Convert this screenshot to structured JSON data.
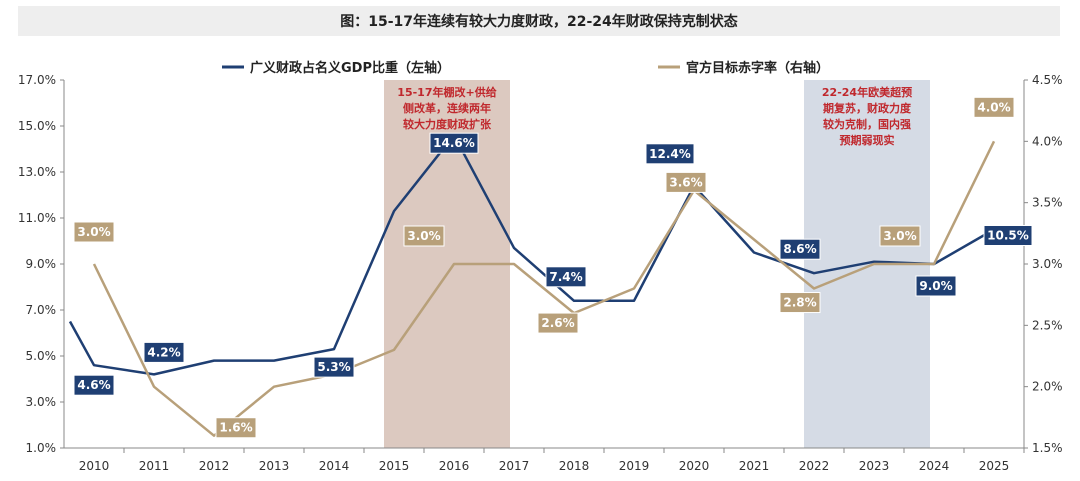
{
  "title": "图：15-17年连续有较大力度财政，22-24年财政保持克制状态",
  "chart_data": {
    "type": "line",
    "x": [
      "2010",
      "2011",
      "2012",
      "2013",
      "2014",
      "2015",
      "2016",
      "2017",
      "2018",
      "2019",
      "2020",
      "2021",
      "2022",
      "2023",
      "2024",
      "2025"
    ],
    "left_axis": {
      "ticks": [
        "1.0%",
        "3.0%",
        "5.0%",
        "7.0%",
        "9.0%",
        "11.0%",
        "13.0%",
        "15.0%",
        "17.0%"
      ],
      "ylim": [
        1,
        17
      ]
    },
    "right_axis": {
      "ticks": [
        "1.5%",
        "2.0%",
        "2.5%",
        "3.0%",
        "3.5%",
        "4.0%",
        "4.5%"
      ],
      "ylim": [
        1.5,
        4.5
      ]
    },
    "series": [
      {
        "name": "广义财政占名义GDP比重（左轴）",
        "axis": "left",
        "color": "#1f3f73",
        "x": [
          2009.6,
          2010,
          2011,
          2012,
          2013,
          2014,
          2015,
          2016,
          2017,
          2018,
          2019,
          2020,
          2021,
          2022,
          2023,
          2024,
          2025
        ],
        "values": [
          6.5,
          4.6,
          4.2,
          4.8,
          4.8,
          5.3,
          11.3,
          14.6,
          9.7,
          7.4,
          7.4,
          12.4,
          9.5,
          8.6,
          9.1,
          9.0,
          10.5
        ]
      },
      {
        "name": "官方目标赤字率（右轴）",
        "axis": "right",
        "color": "#b8a07a",
        "x": [
          2010,
          2011,
          2012,
          2013,
          2014,
          2015,
          2016,
          2017,
          2018,
          2019,
          2020,
          2021,
          2022,
          2023,
          2024,
          2025
        ],
        "values": [
          3.0,
          2.0,
          1.6,
          2.0,
          2.1,
          2.3,
          3.0,
          3.0,
          2.6,
          2.8,
          3.6,
          3.2,
          2.8,
          3.0,
          3.0,
          4.0
        ]
      }
    ],
    "data_labels": [
      {
        "series": 0,
        "year": 2010,
        "text": "4.6%"
      },
      {
        "series": 0,
        "year": 2011,
        "text": "4.2%"
      },
      {
        "series": 0,
        "year": 2014,
        "text": "5.3%"
      },
      {
        "series": 0,
        "year": 2016,
        "text": "14.6%"
      },
      {
        "series": 0,
        "year": 2018,
        "text": "7.4%"
      },
      {
        "series": 0,
        "year": 2020,
        "text": "12.4%"
      },
      {
        "series": 0,
        "year": 2022,
        "text": "8.6%"
      },
      {
        "series": 0,
        "year": 2024,
        "text": "9.0%"
      },
      {
        "series": 0,
        "year": 2025,
        "text": "10.5%"
      },
      {
        "series": 1,
        "year": 2010,
        "text": "3.0%"
      },
      {
        "series": 1,
        "year": 2012,
        "text": "1.6%"
      },
      {
        "series": 1,
        "year": 2016,
        "text": "3.0%"
      },
      {
        "series": 1,
        "year": 2018,
        "text": "2.6%"
      },
      {
        "series": 1,
        "year": 2020,
        "text": "3.6%"
      },
      {
        "series": 1,
        "year": 2022,
        "text": "2.8%"
      },
      {
        "series": 1,
        "year": 2024,
        "text": "3.0%"
      },
      {
        "series": 1,
        "year": 2025,
        "text": "4.0%"
      }
    ],
    "shaded_regions": [
      {
        "from": 2015,
        "to": 2017,
        "color": "#dcc9c0",
        "annotation": [
          "15-17年棚改+供给",
          "侧改革，连续两年",
          "较大力度财政扩张"
        ],
        "annotation_color": "#c0282d"
      },
      {
        "from": 2022,
        "to": 2024,
        "color": "#d5dbe5",
        "annotation": [
          "22-24年欧美超预",
          "期复苏，财政力度",
          "较为克制，国内强",
          "预期弱现实"
        ],
        "annotation_color": "#c0282d"
      }
    ],
    "legend": "top",
    "grid": false
  }
}
